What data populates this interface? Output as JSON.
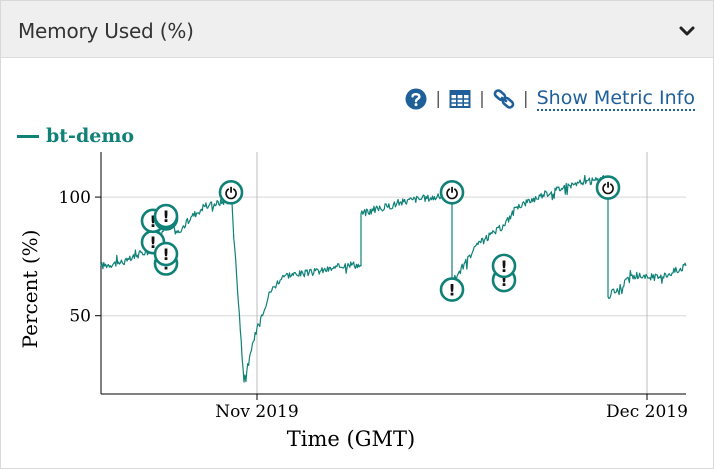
{
  "panel": {
    "title": "Memory Used (%)",
    "collapse_icon": "chevron-down-icon"
  },
  "toolbar": {
    "help_icon": "help-circle-icon",
    "table_icon": "table-icon",
    "link_icon": "link-icon",
    "separator": "|",
    "metric_info_label": "Show Metric Info"
  },
  "colors": {
    "series": "#0f8177",
    "header_bg": "#efefef",
    "link": "#1f5f9a",
    "grid": "#d6d6d6"
  },
  "chart_data": {
    "type": "line",
    "xlabel": "Time (GMT)",
    "ylabel": "Percent (%)",
    "x_ticks": [
      {
        "label": "Nov 2019",
        "value": "2019-11-01"
      },
      {
        "label": "Dec 2019",
        "value": "2019-12-01"
      }
    ],
    "y_ticks": [
      50,
      100
    ],
    "xlim": [
      "2019-10-20",
      "2019-12-04"
    ],
    "ylim": [
      17,
      119
    ],
    "grid": true,
    "legend": "top-left",
    "series": [
      {
        "name": "bt-demo",
        "points": [
          [
            "2019-10-20",
            71
          ],
          [
            "2019-10-22",
            73
          ],
          [
            "2019-10-24",
            79
          ],
          [
            "2019-10-25",
            88
          ],
          [
            "2019-10-26",
            85
          ],
          [
            "2019-10-27",
            92
          ],
          [
            "2019-10-28",
            96
          ],
          [
            "2019-10-30",
            99
          ],
          [
            "2019-10-30",
            102
          ],
          [
            "2019-10-31",
            22
          ],
          [
            "2019-11-01",
            45
          ],
          [
            "2019-11-02",
            60
          ],
          [
            "2019-11-03",
            67
          ],
          [
            "2019-11-05",
            68
          ],
          [
            "2019-11-07",
            70
          ],
          [
            "2019-11-08",
            72
          ],
          [
            "2019-11-09",
            71
          ],
          [
            "2019-11-09",
            93
          ],
          [
            "2019-11-11",
            96
          ],
          [
            "2019-11-13",
            99
          ],
          [
            "2019-11-15",
            100
          ],
          [
            "2019-11-16",
            102
          ],
          [
            "2019-11-16",
            64
          ],
          [
            "2019-11-18",
            80
          ],
          [
            "2019-11-20",
            88
          ],
          [
            "2019-11-21",
            96
          ],
          [
            "2019-11-23",
            101
          ],
          [
            "2019-11-25",
            105
          ],
          [
            "2019-11-27",
            107
          ],
          [
            "2019-11-28",
            108
          ],
          [
            "2019-11-28",
            58
          ],
          [
            "2019-11-30",
            67
          ],
          [
            "2019-12-02",
            66
          ],
          [
            "2019-12-04",
            71
          ]
        ]
      }
    ],
    "annotations": [
      {
        "type": "restart",
        "icon": "power-icon",
        "label": "⏻",
        "x": "2019-10-30",
        "y": 102
      },
      {
        "type": "restart",
        "icon": "power-icon",
        "label": "⏻",
        "x": "2019-11-16",
        "y": 102
      },
      {
        "type": "restart",
        "icon": "power-icon",
        "label": "⏻",
        "x": "2019-11-28",
        "y": 104
      },
      {
        "type": "alert",
        "icon": "alert-icon",
        "label": "!",
        "x": "2019-10-24",
        "y": 81
      },
      {
        "type": "alert",
        "icon": "alert-icon",
        "label": "!",
        "x": "2019-10-24",
        "y": 90
      },
      {
        "type": "alert",
        "icon": "alert-icon",
        "label": "!",
        "x": "2019-10-25",
        "y": 91
      },
      {
        "type": "alert",
        "icon": "alert-icon",
        "label": "!",
        "x": "2019-10-25",
        "y": 92
      },
      {
        "type": "alert",
        "icon": "alert-icon",
        "label": "!",
        "x": "2019-10-25",
        "y": 72
      },
      {
        "type": "alert",
        "icon": "alert-icon",
        "label": "!",
        "x": "2019-10-25",
        "y": 76
      },
      {
        "type": "alert",
        "icon": "alert-icon",
        "label": "!",
        "x": "2019-11-16",
        "y": 61
      },
      {
        "type": "alert",
        "icon": "alert-icon",
        "label": "!",
        "x": "2019-11-20",
        "y": 65
      },
      {
        "type": "alert",
        "icon": "alert-icon",
        "label": "!",
        "x": "2019-11-20",
        "y": 71
      }
    ]
  }
}
